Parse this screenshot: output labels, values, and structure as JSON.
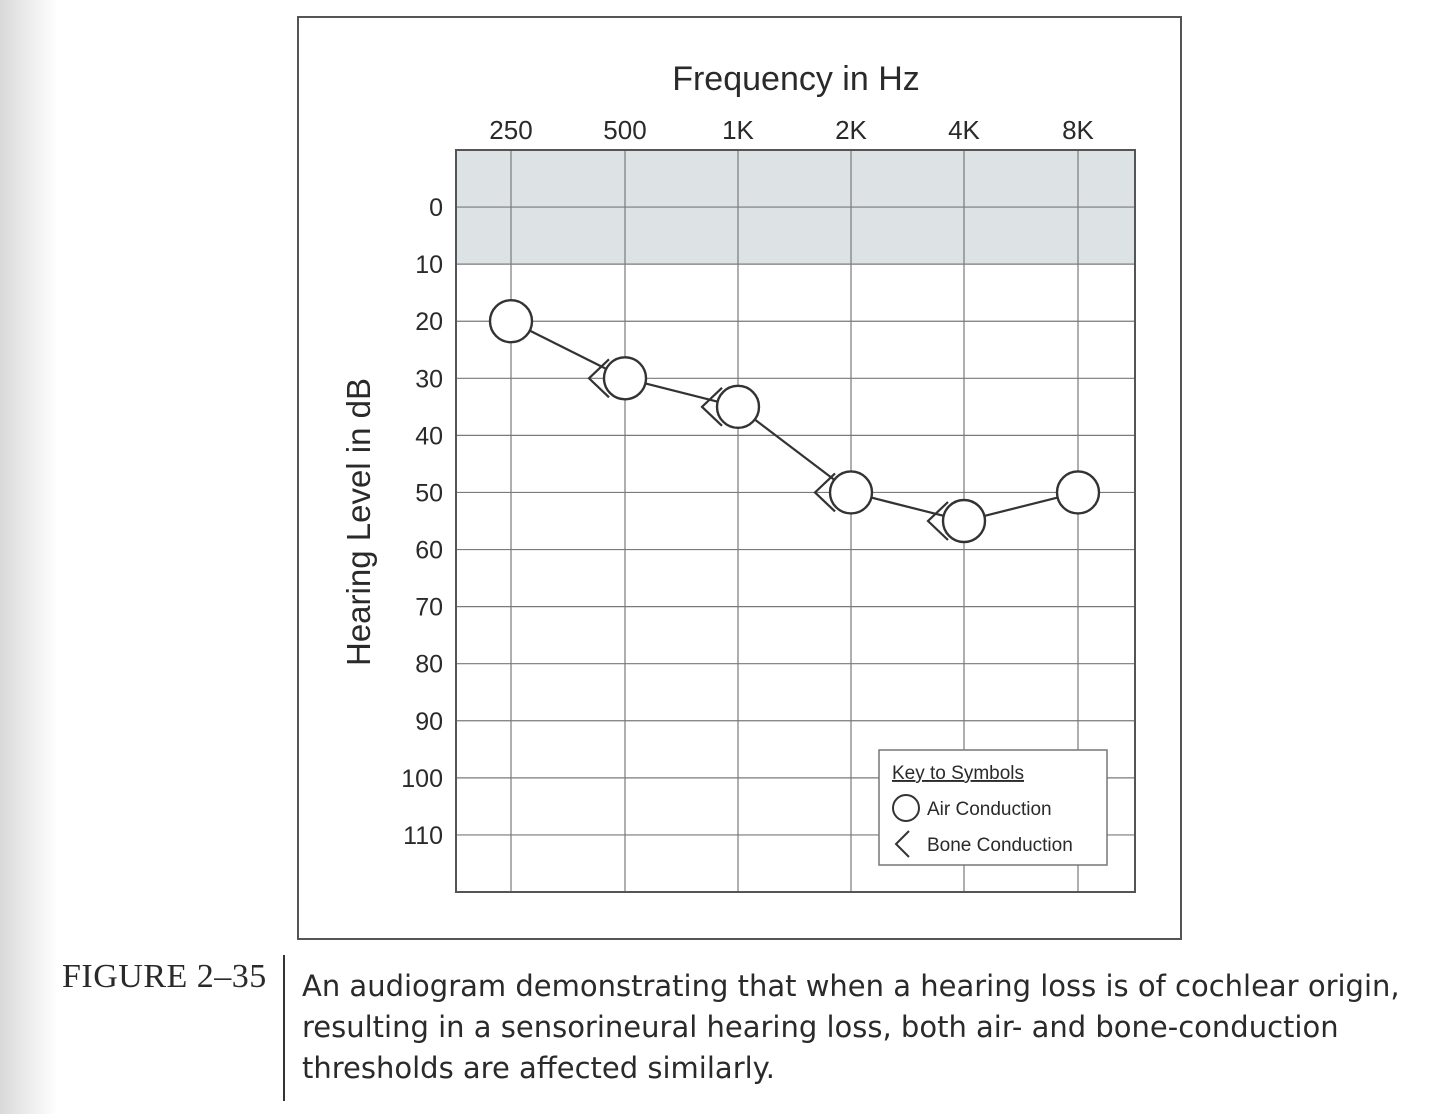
{
  "chart_data": {
    "type": "scatter",
    "title": "",
    "xlabel": "Frequency in Hz",
    "ylabel": "Hearing Level in dB",
    "x_categories": [
      "250",
      "500",
      "1K",
      "2K",
      "4K",
      "8K"
    ],
    "y_ticks": [
      "0",
      "10",
      "20",
      "30",
      "40",
      "50",
      "60",
      "70",
      "80",
      "90",
      "100",
      "110"
    ],
    "ylim": [
      -10,
      120
    ],
    "y_inverted": true,
    "grid": true,
    "shaded_band": [
      -10,
      10
    ],
    "legend_position": "bottom-right",
    "legend_title": "Key to Symbols",
    "series": [
      {
        "name": "Air Conduction",
        "symbol": "circle",
        "connected": true,
        "x": [
          "250",
          "500",
          "1K",
          "2K",
          "4K",
          "8K"
        ],
        "values": [
          20,
          30,
          35,
          50,
          55,
          50
        ]
      },
      {
        "name": "Bone Conduction",
        "symbol": "left-angle",
        "connected": false,
        "x": [
          "500",
          "1K",
          "2K",
          "4K"
        ],
        "values": [
          30,
          35,
          50,
          55
        ]
      }
    ]
  },
  "caption": {
    "label": "FIGURE 2–35",
    "text": "An audiogram demonstrating that when a hearing loss is of cochlear origin, resulting in a sensorineural hearing loss, both air- and bone-conduction thresholds are affected similarly."
  },
  "colors": {
    "band": "#dde3e4",
    "grid": "#7a7a7a",
    "ink": "#2a2a2a"
  }
}
